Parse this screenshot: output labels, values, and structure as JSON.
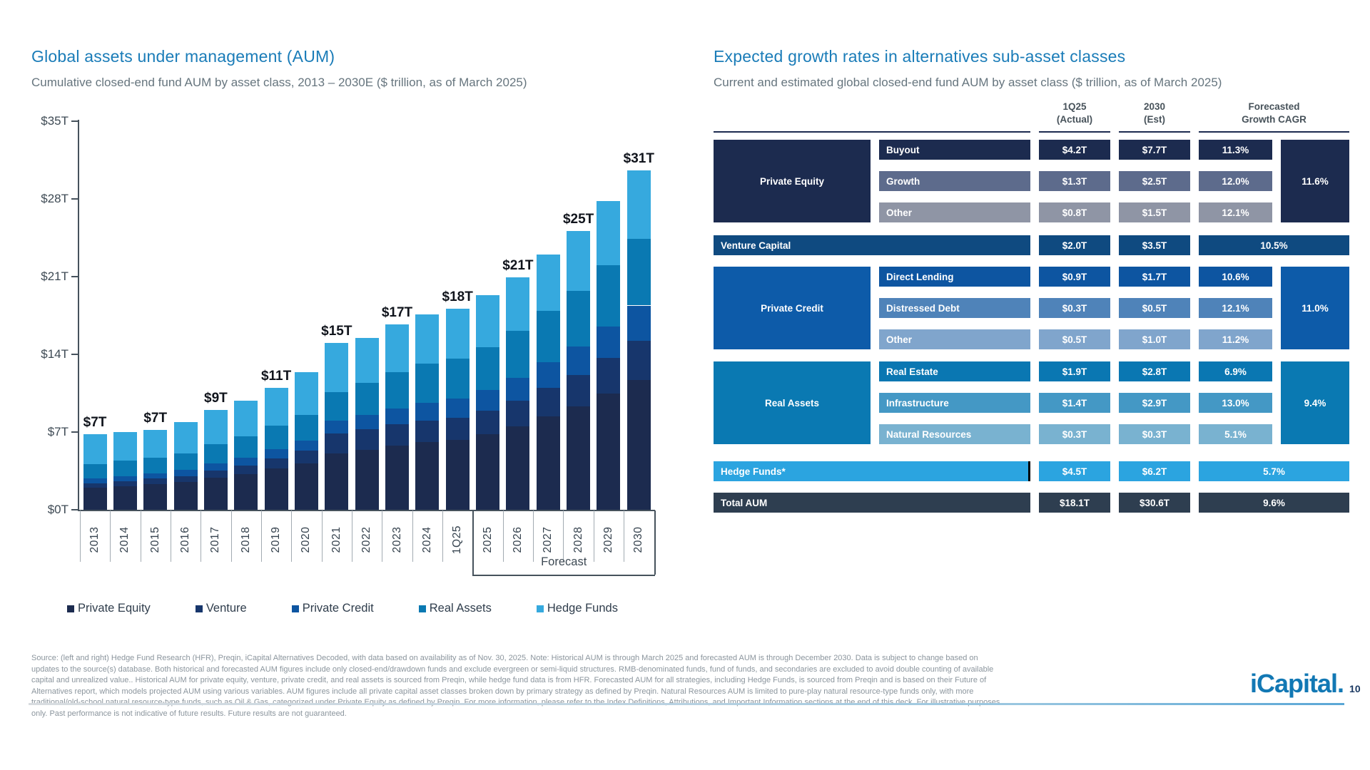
{
  "chart_data": [
    {
      "type": "bar",
      "stacked": true,
      "title": "Global assets under management (AUM)",
      "subtitle": "Cumulative closed-end fund AUM by asset class, 2013 – 2030E ($ trillion, as of March 2025)",
      "categories": [
        "2013",
        "2014",
        "2015",
        "2016",
        "2017",
        "2018",
        "2019",
        "2020",
        "2021",
        "2022",
        "2023",
        "2024",
        "1Q25",
        "2025",
        "2026",
        "2027",
        "2028",
        "2029",
        "2030"
      ],
      "series": [
        {
          "name": "Private Equity",
          "color": "#1c2b4f",
          "values": [
            2.0,
            2.1,
            2.3,
            2.5,
            2.9,
            3.2,
            3.7,
            4.2,
            5.1,
            5.4,
            5.8,
            6.1,
            6.3,
            6.8,
            7.5,
            8.4,
            9.3,
            10.5,
            11.7
          ]
        },
        {
          "name": "Venture",
          "color": "#17366c",
          "values": [
            0.4,
            0.45,
            0.5,
            0.55,
            0.65,
            0.75,
            0.9,
            1.1,
            1.8,
            1.85,
            1.9,
            1.95,
            2.0,
            2.15,
            2.35,
            2.6,
            2.85,
            3.15,
            3.5
          ]
        },
        {
          "name": "Private Credit",
          "color": "#0d55a1",
          "values": [
            0.4,
            0.45,
            0.5,
            0.55,
            0.65,
            0.75,
            0.85,
            0.95,
            1.1,
            1.3,
            1.45,
            1.6,
            1.7,
            1.85,
            2.05,
            2.3,
            2.55,
            2.85,
            3.2
          ]
        },
        {
          "name": "Real Assets",
          "color": "#0a79b2",
          "values": [
            1.3,
            1.4,
            1.4,
            1.5,
            1.7,
            1.9,
            2.1,
            2.3,
            2.6,
            2.9,
            3.25,
            3.5,
            3.6,
            3.85,
            4.2,
            4.6,
            5.0,
            5.5,
            6.0
          ]
        },
        {
          "name": "Hedge Funds",
          "color": "#36a9de",
          "values": [
            2.7,
            2.6,
            2.5,
            2.8,
            3.1,
            3.2,
            3.45,
            3.85,
            4.4,
            4.05,
            4.3,
            4.45,
            4.5,
            4.65,
            4.85,
            5.1,
            5.4,
            5.8,
            6.2
          ]
        }
      ],
      "bar_labels": [
        {
          "category": "2013",
          "label": "$7T"
        },
        {
          "category": "2015",
          "label": "$7T"
        },
        {
          "category": "2017",
          "label": "$9T"
        },
        {
          "category": "2019",
          "label": "$11T"
        },
        {
          "category": "2021",
          "label": "$15T"
        },
        {
          "category": "2023",
          "label": "$17T"
        },
        {
          "category": "1Q25",
          "label": "$18T"
        },
        {
          "category": "2026",
          "label": "$21T"
        },
        {
          "category": "2028",
          "label": "$25T"
        },
        {
          "category": "2030",
          "label": "$31T"
        }
      ],
      "ylim": [
        0,
        35
      ],
      "yticks": [
        {
          "value": 0,
          "label": "$0T"
        },
        {
          "value": 7,
          "label": "$7T"
        },
        {
          "value": 14,
          "label": "$14T"
        },
        {
          "value": 21,
          "label": "$21T"
        },
        {
          "value": 28,
          "label": "$28T"
        },
        {
          "value": 35,
          "label": "$35T"
        }
      ],
      "grid": false,
      "legend_position": "bottom",
      "forecast": {
        "label": "Forecast",
        "from_category": "2025",
        "to_category": "2030"
      }
    },
    {
      "type": "table",
      "title": "Expected growth rates in alternatives sub-asset classes",
      "subtitle": "Current and estimated global closed-end fund AUM by asset class ($ trillion, as of March 2025)",
      "column_headers": [
        {
          "lines": [
            "1Q25",
            "(Actual)"
          ]
        },
        {
          "lines": [
            "2030",
            "(Est)"
          ]
        },
        {
          "lines": [
            "Forecasted",
            "Growth CAGR"
          ]
        }
      ],
      "groups": [
        {
          "kind": "group",
          "name": "Private Equity",
          "group_color": "#1c2b4f",
          "group_cagr": "11.6%",
          "rows": [
            {
              "label": "Buyout",
              "color": "#1c2b4f",
              "q1_2025": "$4.2T",
              "est_2030": "$7.7T",
              "cagr": "11.3%"
            },
            {
              "label": "Growth",
              "color": "#5d6b8c",
              "q1_2025": "$1.3T",
              "est_2030": "$2.5T",
              "cagr": "12.0%"
            },
            {
              "label": "Other",
              "color": "#8f95a5",
              "q1_2025": "$0.8T",
              "est_2030": "$1.5T",
              "cagr": "12.1%"
            }
          ]
        },
        {
          "kind": "single",
          "name": "Venture Capital",
          "color": "#0f4a80",
          "q1_2025": "$2.0T",
          "est_2030": "$3.5T",
          "cagr": "10.5%"
        },
        {
          "kind": "group",
          "name": "Private Credit",
          "group_color": "#0d5ba9",
          "group_cagr": "11.0%",
          "rows": [
            {
              "label": "Direct Lending",
              "color": "#0d55a1",
              "q1_2025": "$0.9T",
              "est_2030": "$1.7T",
              "cagr": "10.6%"
            },
            {
              "label": "Distressed Debt",
              "color": "#4f83b9",
              "q1_2025": "$0.3T",
              "est_2030": "$0.5T",
              "cagr": "12.1%"
            },
            {
              "label": "Other",
              "color": "#80a5cc",
              "q1_2025": "$0.5T",
              "est_2030": "$1.0T",
              "cagr": "11.2%"
            }
          ]
        },
        {
          "kind": "group",
          "name": "Real Assets",
          "group_color": "#0a79b2",
          "group_cagr": "9.4%",
          "rows": [
            {
              "label": "Real Estate",
              "color": "#0a77b2",
              "q1_2025": "$1.9T",
              "est_2030": "$2.8T",
              "cagr": "6.9%"
            },
            {
              "label": "Infrastructure",
              "color": "#4498c5",
              "q1_2025": "$1.4T",
              "est_2030": "$2.9T",
              "cagr": "13.0%"
            },
            {
              "label": "Natural Resources",
              "color": "#79b2d0",
              "q1_2025": "$0.3T",
              "est_2030": "$0.3T",
              "cagr": "5.1%"
            }
          ]
        },
        {
          "kind": "single",
          "name": "Hedge Funds*",
          "color": "#2ba4e0",
          "q1_2025": "$4.5T",
          "est_2030": "$6.2T",
          "cagr": "5.7%",
          "accent_border": true
        },
        {
          "kind": "single",
          "name": "Total AUM",
          "color": "#2e3e50",
          "q1_2025": "$18.1T",
          "est_2030": "$30.6T",
          "cagr": "9.6%"
        }
      ]
    }
  ],
  "footer": {
    "source": "Source: (left and right) Hedge Fund Research (HFR), Preqin, iCapital Alternatives Decoded, with data based on availability as of Nov. 30, 2025. Note: Historical AUM is through March 2025 and forecasted AUM is through December 2030. Data is subject to change based on updates to the source(s) database. Both historical and forecasted AUM figures include only closed-end/drawdown funds and exclude evergreen or semi-liquid structures. RMB-denominated funds, fund of funds, and secondaries are excluded to avoid double counting of available capital and unrealized value.. Historical AUM for private equity, venture, private credit, and real assets is sourced from Preqin, while hedge fund data is from HFR. Forecasted AUM for all strategies, including Hedge Funds, is sourced from Preqin and is based on their Future of Alternatives report, which models projected AUM using various variables. AUM figures include all private capital asset classes broken down by primary strategy as defined by Preqin. Natural Resources AUM is limited to pure-play natural resource-type funds only, with more traditional/old-school natural resource-type funds, such as Oil & Gas, categorized under Private Equity as defined by Preqin. For more information, please refer to the Index Definitions, Attributions, and Important Information sections at the end of this deck. For illustrative purposes only. Past performance is not indicative of future results. Future results are not guaranteed.",
    "logo": "iCapital.",
    "page_number": "10"
  }
}
